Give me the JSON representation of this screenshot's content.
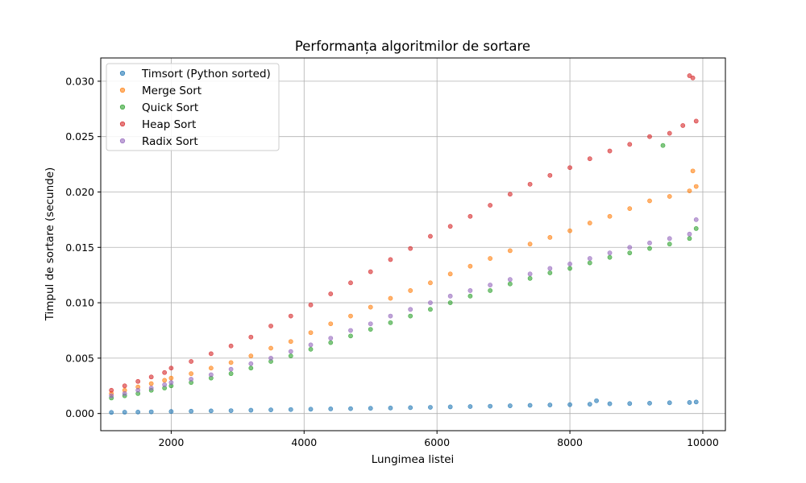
{
  "chart_data": {
    "type": "scatter",
    "title": "Performanța algoritmilor de sortare",
    "xlabel": "Lungimea listei",
    "ylabel": "Timpul de sortare (secunde)",
    "xlim": [
      940,
      10340
    ],
    "ylim": [
      -0.00155,
      0.0321
    ],
    "x_ticks": [
      2000,
      4000,
      6000,
      8000,
      10000
    ],
    "x_tick_labels": [
      "2000",
      "4000",
      "6000",
      "8000",
      "10000"
    ],
    "y_ticks": [
      0.0,
      0.005,
      0.01,
      0.015,
      0.02,
      0.025,
      0.03
    ],
    "y_tick_labels": [
      "0.000",
      "0.005",
      "0.010",
      "0.015",
      "0.020",
      "0.025",
      "0.030"
    ],
    "grid": true,
    "legend_position": "top-left",
    "series": [
      {
        "name": "Timsort (Python sorted)",
        "color": "#1f77b4",
        "x": [
          1100,
          1300,
          1500,
          1700,
          2000,
          2300,
          2600,
          2900,
          3200,
          3500,
          3800,
          4100,
          4400,
          4700,
          5000,
          5300,
          5600,
          5900,
          6200,
          6500,
          6800,
          7100,
          7400,
          7700,
          8000,
          8300,
          8400,
          8600,
          8900,
          9200,
          9500,
          9800,
          9900
        ],
        "y": [
          0.0001,
          0.00012,
          0.00013,
          0.00015,
          0.00018,
          0.00021,
          0.00024,
          0.00026,
          0.0003,
          0.00033,
          0.00036,
          0.00039,
          0.00042,
          0.00044,
          0.00047,
          0.0005,
          0.00053,
          0.00056,
          0.0006,
          0.00063,
          0.00066,
          0.0007,
          0.00074,
          0.00077,
          0.0008,
          0.00084,
          0.00115,
          0.00088,
          0.0009,
          0.00093,
          0.00097,
          0.001,
          0.00104
        ]
      },
      {
        "name": "Merge Sort",
        "color": "#ff7f0e",
        "x": [
          1100,
          1300,
          1500,
          1700,
          1900,
          2000,
          2300,
          2600,
          2900,
          3200,
          3500,
          3800,
          4100,
          4400,
          4700,
          5000,
          5300,
          5600,
          5900,
          6200,
          6500,
          6800,
          7100,
          7400,
          7700,
          8000,
          8300,
          8600,
          8900,
          9200,
          9500,
          9800,
          9850,
          9900
        ],
        "y": [
          0.0018,
          0.0021,
          0.0024,
          0.0027,
          0.003,
          0.0032,
          0.0036,
          0.0041,
          0.0046,
          0.0052,
          0.0059,
          0.0065,
          0.0073,
          0.0081,
          0.0088,
          0.0096,
          0.0104,
          0.0111,
          0.0118,
          0.0126,
          0.0133,
          0.014,
          0.0147,
          0.0153,
          0.0159,
          0.0165,
          0.0172,
          0.0178,
          0.0185,
          0.0192,
          0.0196,
          0.0201,
          0.0219,
          0.0205
        ]
      },
      {
        "name": "Quick Sort",
        "color": "#2ca02c",
        "x": [
          1100,
          1300,
          1500,
          1700,
          1900,
          2000,
          2300,
          2600,
          2900,
          3200,
          3500,
          3800,
          4100,
          4400,
          4700,
          5000,
          5300,
          5600,
          5900,
          6200,
          6500,
          6800,
          7100,
          7400,
          7700,
          8000,
          8300,
          8600,
          8900,
          9200,
          9400,
          9500,
          9800,
          9900
        ],
        "y": [
          0.0014,
          0.0016,
          0.0018,
          0.0021,
          0.0023,
          0.0025,
          0.0028,
          0.0032,
          0.0036,
          0.0041,
          0.0047,
          0.0052,
          0.0058,
          0.0064,
          0.007,
          0.0076,
          0.0082,
          0.0088,
          0.0094,
          0.01,
          0.0106,
          0.0111,
          0.0117,
          0.0122,
          0.0127,
          0.0131,
          0.0136,
          0.0141,
          0.0145,
          0.0149,
          0.0242,
          0.0153,
          0.0158,
          0.0167
        ]
      },
      {
        "name": "Heap Sort",
        "color": "#d62728",
        "x": [
          1100,
          1300,
          1500,
          1700,
          1900,
          2000,
          2300,
          2600,
          2900,
          3200,
          3500,
          3800,
          4100,
          4400,
          4700,
          5000,
          5300,
          5600,
          5900,
          6200,
          6500,
          6800,
          7100,
          7400,
          7700,
          8000,
          8300,
          8600,
          8900,
          9200,
          9500,
          9700,
          9800,
          9850,
          9900
        ],
        "y": [
          0.0021,
          0.0025,
          0.0029,
          0.0033,
          0.0037,
          0.0041,
          0.0047,
          0.0054,
          0.0061,
          0.0069,
          0.0079,
          0.0088,
          0.0098,
          0.0108,
          0.0118,
          0.0128,
          0.0139,
          0.0149,
          0.016,
          0.0169,
          0.0178,
          0.0188,
          0.0198,
          0.0207,
          0.0215,
          0.0222,
          0.023,
          0.0237,
          0.0243,
          0.025,
          0.0253,
          0.026,
          0.0305,
          0.0303,
          0.0264
        ]
      },
      {
        "name": "Radix Sort",
        "color": "#9467bd",
        "x": [
          1100,
          1300,
          1500,
          1700,
          1900,
          2000,
          2300,
          2600,
          2900,
          3200,
          3500,
          3800,
          4100,
          4400,
          4700,
          5000,
          5300,
          5600,
          5900,
          6200,
          6500,
          6800,
          7100,
          7400,
          7700,
          8000,
          8300,
          8600,
          8900,
          9200,
          9500,
          9800,
          9900
        ],
        "y": [
          0.0016,
          0.0018,
          0.0021,
          0.0023,
          0.0026,
          0.0028,
          0.0031,
          0.0035,
          0.004,
          0.0045,
          0.005,
          0.0056,
          0.0062,
          0.0068,
          0.0075,
          0.0081,
          0.0088,
          0.0094,
          0.01,
          0.0106,
          0.0111,
          0.0116,
          0.0121,
          0.0126,
          0.0131,
          0.0135,
          0.014,
          0.0145,
          0.015,
          0.0154,
          0.0158,
          0.0162,
          0.0175
        ]
      }
    ]
  }
}
